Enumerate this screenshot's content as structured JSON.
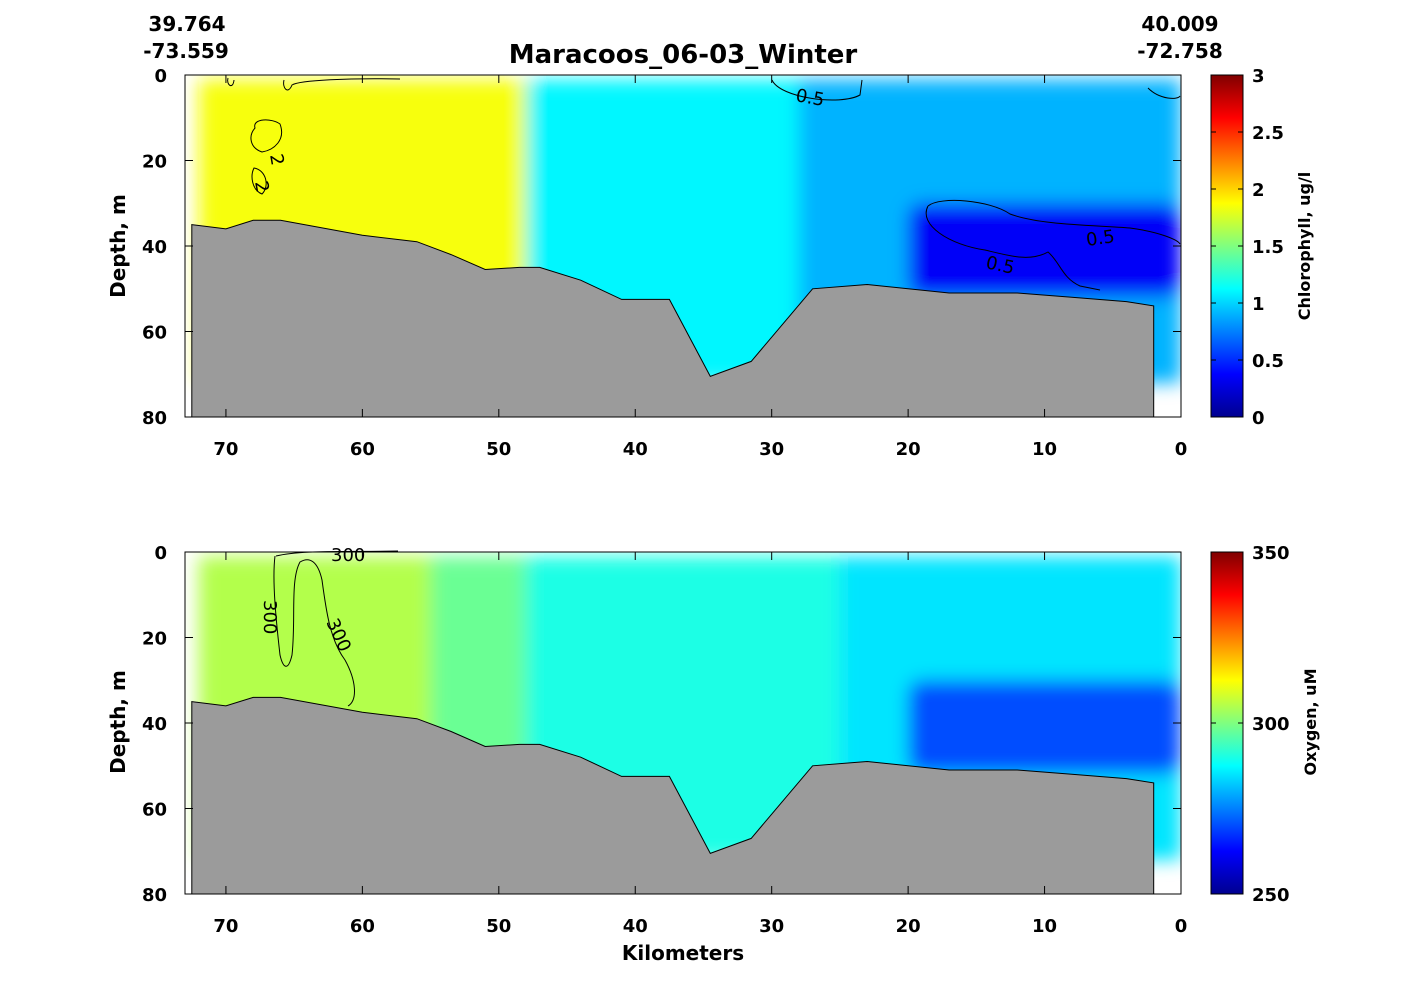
{
  "chart_data": [
    {
      "type": "heatmap",
      "title": "Maracoos_06-03_Winter",
      "start": {
        "lat": "39.764",
        "lon": "-73.559"
      },
      "end": {
        "lat": "40.009",
        "lon": "-72.758"
      },
      "xlabel": "",
      "ylabel": "Depth, m",
      "colorbar_label": "Chlorophyll, ug/l",
      "x_reversed": true,
      "y_reversed": true,
      "xlim": [
        73,
        0
      ],
      "ylim": [
        0,
        80
      ],
      "xticks": [
        70,
        60,
        50,
        40,
        30,
        20,
        10,
        0
      ],
      "yticks": [
        0,
        20,
        40,
        60,
        80
      ],
      "colorbar_range": [
        0,
        3
      ],
      "colorbar_ticks": [
        "0",
        "0.5",
        "1",
        "1.5",
        "2",
        "2.5",
        "3"
      ],
      "colormap": "jet",
      "contour_labels": [
        "2",
        "2",
        "0.5",
        "0.5",
        "0.5"
      ],
      "bathymetry": {
        "km": [
          72.5,
          70,
          68,
          66,
          60,
          56,
          53.5,
          51,
          48.5,
          47,
          44,
          41,
          37.5,
          34.5,
          31.5,
          27,
          23,
          20,
          17,
          12,
          8,
          4,
          2
        ],
        "depth_m": [
          35,
          36,
          34,
          34,
          37.5,
          39,
          42,
          45.5,
          45,
          45,
          48,
          52.5,
          52.5,
          70.5,
          67,
          50,
          49,
          50,
          51,
          51,
          52,
          53,
          54
        ]
      },
      "field_regions": [
        {
          "desc": "high chlorophyll patch",
          "km_range": [
            69,
            66
          ],
          "depth_range": [
            10,
            28
          ],
          "value": 2.2
        },
        {
          "desc": "near-shore surface",
          "km_range": [
            72,
            48
          ],
          "value": 1.85
        },
        {
          "desc": "mid shelf",
          "km_range": [
            48,
            28
          ],
          "value": 1.1
        },
        {
          "desc": "offshore surface",
          "km_range": [
            28,
            0
          ],
          "value": 0.9
        },
        {
          "desc": "offshore bottom low",
          "km_range": [
            20,
            0
          ],
          "depth_range": [
            30,
            52
          ],
          "value": 0.35
        }
      ]
    },
    {
      "type": "heatmap",
      "title": "",
      "xlabel": "Kilometers",
      "ylabel": "Depth, m",
      "colorbar_label": "Oxygen, uM",
      "x_reversed": true,
      "y_reversed": true,
      "xlim": [
        73,
        0
      ],
      "ylim": [
        0,
        80
      ],
      "xticks": [
        70,
        60,
        50,
        40,
        30,
        20,
        10,
        0
      ],
      "yticks": [
        0,
        20,
        40,
        60,
        80
      ],
      "colorbar_range": [
        250,
        350
      ],
      "colorbar_ticks": [
        "250",
        "300",
        "350"
      ],
      "colormap": "jet",
      "contour_labels": [
        "300",
        "300",
        "300"
      ],
      "field_regions": [
        {
          "desc": "near-shore",
          "km_range": [
            72,
            55
          ],
          "value": 305
        },
        {
          "desc": "transition",
          "km_range": [
            55,
            48
          ],
          "value": 298
        },
        {
          "desc": "mid shelf",
          "km_range": [
            48,
            25
          ],
          "value": 290
        },
        {
          "desc": "offshore surface",
          "km_range": [
            25,
            0
          ],
          "value": 285
        },
        {
          "desc": "offshore bottom low",
          "km_range": [
            20,
            0
          ],
          "depth_range": [
            30,
            52
          ],
          "value": 270
        }
      ]
    }
  ]
}
